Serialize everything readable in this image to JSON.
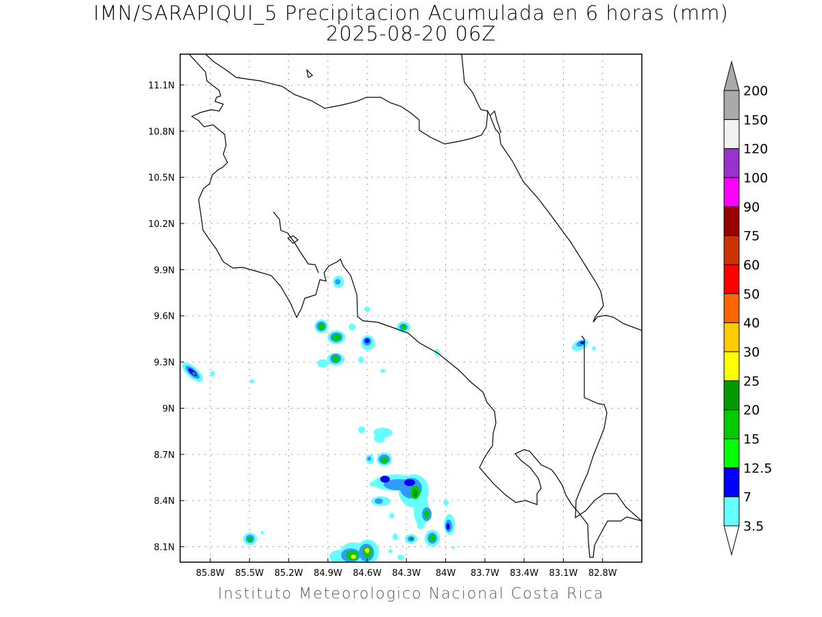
{
  "title_line1": "IMN/SARAPIQUI_5 Precipitacion Acumulada en 6 horas (mm)",
  "title_line2": "2025-08-20 06Z",
  "footer": "Instituto Meteorologico Nacional Costa Rica",
  "map": {
    "lon_range": [
      -86.03,
      -82.5
    ],
    "lat_range": [
      8.0,
      11.3
    ],
    "lon_ticks": [
      "85.8W",
      "85.5W",
      "85.2W",
      "84.9W",
      "84.6W",
      "84.3W",
      "84W",
      "83.7W",
      "83.4W",
      "83.1W",
      "82.8W"
    ],
    "lon_tick_values": [
      -85.8,
      -85.5,
      -85.2,
      -84.9,
      -84.6,
      -84.3,
      -84.0,
      -83.7,
      -83.4,
      -83.1,
      -82.8
    ],
    "lat_ticks": [
      "8.1N",
      "8.4N",
      "8.7N",
      "9N",
      "9.3N",
      "9.6N",
      "9.9N",
      "10.2N",
      "10.5N",
      "10.8N",
      "11.1N"
    ],
    "lat_tick_values": [
      8.1,
      8.4,
      8.7,
      9.0,
      9.3,
      9.6,
      9.9,
      10.2,
      10.5,
      10.8,
      11.1
    ],
    "grid": true
  },
  "colorbar": {
    "labels": [
      "3.5",
      "7",
      "12.5",
      "15",
      "20",
      "25",
      "30",
      "40",
      "50",
      "60",
      "75",
      "90",
      "100",
      "120",
      "150",
      "200"
    ],
    "colors": [
      "#66ffff",
      "#3399ff",
      "#0000ff",
      "#00ff00",
      "#00cc00",
      "#009900",
      "#ffff00",
      "#ffcc00",
      "#ff6600",
      "#ff0000",
      "#cc3300",
      "#990000",
      "#ff00ff",
      "#9933cc",
      "#f2f2f2",
      "#aaaaaa"
    ]
  },
  "precip_cells": [
    {
      "lon": -85.87,
      "lat": 9.23,
      "mm": 15
    },
    {
      "lon": -85.48,
      "lat": 8.15,
      "mm": 15
    },
    {
      "lon": -84.89,
      "lat": 9.53,
      "mm": 15
    },
    {
      "lon": -84.8,
      "lat": 9.46,
      "mm": 20
    },
    {
      "lon": -84.81,
      "lat": 9.32,
      "mm": 15
    },
    {
      "lon": -84.78,
      "lat": 9.82,
      "mm": 12.5
    },
    {
      "lon": -84.56,
      "lat": 9.43,
      "mm": 12.5
    },
    {
      "lon": -84.27,
      "lat": 9.52,
      "mm": 15
    },
    {
      "lon": -82.96,
      "lat": 9.41,
      "mm": 12.5
    },
    {
      "lon": -84.47,
      "lat": 8.66,
      "mm": 15
    },
    {
      "lon": -84.21,
      "lat": 8.5,
      "mm": 12.5
    },
    {
      "lon": -84.12,
      "lat": 8.44,
      "mm": 20
    },
    {
      "lon": -84.12,
      "lat": 8.3,
      "mm": 15
    },
    {
      "lon": -84.09,
      "lat": 8.16,
      "mm": 15
    },
    {
      "lon": -83.97,
      "lat": 8.22,
      "mm": 12.5
    },
    {
      "lon": -84.65,
      "lat": 8.06,
      "mm": 20
    },
    {
      "lon": -84.55,
      "lat": 8.07,
      "mm": 30
    },
    {
      "lon": -84.27,
      "lat": 8.15,
      "mm": 12.5
    }
  ]
}
